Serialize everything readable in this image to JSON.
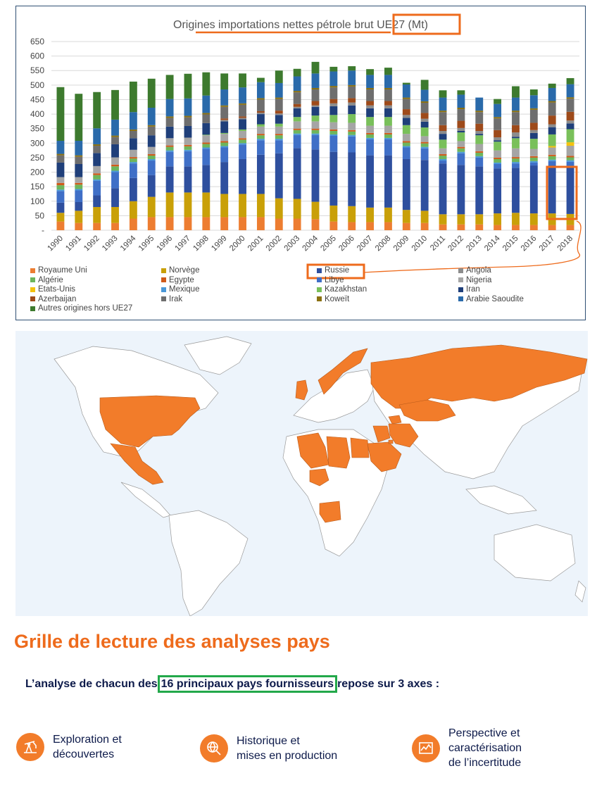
{
  "chart_data": {
    "type": "bar",
    "stacked": true,
    "title": "Origines importations nettes pétrole brut UE27 (Mt)",
    "categories": [
      "1990",
      "1991",
      "1992",
      "1993",
      "1994",
      "1995",
      "1996",
      "1997",
      "1998",
      "1999",
      "2000",
      "2001",
      "2002",
      "2003",
      "2004",
      "2005",
      "2006",
      "2007",
      "2008",
      "2009",
      "2010",
      "2011",
      "2012",
      "2013",
      "2014",
      "2015",
      "2016",
      "2017",
      "2018"
    ],
    "y_ticks": [
      "650",
      "600",
      "550",
      "500",
      "450",
      "400",
      "350",
      "300",
      "250",
      "200",
      "150",
      "100",
      "50",
      "-"
    ],
    "ylim": [
      0,
      650
    ],
    "legend_position": "bottom",
    "grid": true,
    "series": [
      {
        "name": "Royaume Uni",
        "color": "#ed7d31",
        "values": [
          30,
          25,
          25,
          25,
          40,
          45,
          45,
          45,
          45,
          45,
          45,
          45,
          40,
          40,
          38,
          30,
          28,
          28,
          28,
          25,
          25,
          20,
          20,
          20,
          18,
          18,
          18,
          18,
          18
        ]
      },
      {
        "name": "Norvège",
        "color": "#c9a008",
        "values": [
          30,
          42,
          55,
          55,
          60,
          70,
          85,
          85,
          85,
          80,
          80,
          80,
          70,
          68,
          60,
          55,
          55,
          50,
          50,
          45,
          42,
          35,
          35,
          35,
          40,
          42,
          40,
          40,
          38
        ]
      },
      {
        "name": "Russie",
        "color": "#2e4f9e",
        "values": [
          35,
          30,
          40,
          65,
          80,
          75,
          90,
          90,
          95,
          110,
          120,
          135,
          155,
          175,
          180,
          185,
          185,
          180,
          180,
          175,
          175,
          175,
          170,
          165,
          155,
          155,
          165,
          165,
          165
        ]
      },
      {
        "name": "Libye",
        "color": "#3f6fc7",
        "values": [
          40,
          40,
          50,
          55,
          50,
          50,
          50,
          52,
          55,
          50,
          50,
          50,
          45,
          45,
          50,
          55,
          55,
          55,
          55,
          40,
          40,
          10,
          40,
          30,
          15,
          15,
          10,
          15,
          15
        ]
      },
      {
        "name": "Mexique",
        "color": "#4a98d8",
        "values": [
          5,
          5,
          5,
          5,
          5,
          5,
          5,
          5,
          5,
          5,
          5,
          5,
          5,
          5,
          5,
          5,
          5,
          5,
          5,
          5,
          5,
          5,
          5,
          5,
          5,
          5,
          5,
          5,
          5
        ]
      },
      {
        "name": "Algérie",
        "color": "#6db55c",
        "values": [
          15,
          15,
          15,
          15,
          12,
          12,
          12,
          12,
          12,
          12,
          12,
          12,
          12,
          12,
          12,
          12,
          12,
          12,
          12,
          12,
          12,
          12,
          12,
          12,
          12,
          12,
          12,
          12,
          10
        ]
      },
      {
        "name": "Egypte",
        "color": "#d05a1a",
        "values": [
          8,
          6,
          6,
          6,
          5,
          5,
          5,
          5,
          5,
          5,
          5,
          5,
          5,
          5,
          5,
          5,
          5,
          5,
          5,
          5,
          5,
          5,
          5,
          5,
          5,
          5,
          5,
          5,
          5
        ]
      },
      {
        "name": "Nigeria",
        "color": "#a5a5a5",
        "values": [
          20,
          20,
          25,
          25,
          25,
          25,
          25,
          25,
          25,
          25,
          25,
          25,
          25,
          25,
          25,
          25,
          25,
          25,
          25,
          25,
          20,
          20,
          20,
          25,
          25,
          30,
          25,
          25,
          35
        ]
      },
      {
        "name": "Etats-Unis",
        "color": "#f4c20d",
        "values": [
          0,
          0,
          0,
          0,
          0,
          0,
          0,
          0,
          0,
          0,
          0,
          0,
          0,
          0,
          0,
          0,
          0,
          0,
          0,
          0,
          0,
          0,
          0,
          0,
          0,
          0,
          0,
          5,
          12
        ]
      },
      {
        "name": "Kazakhstan",
        "color": "#79c05a",
        "values": [
          0,
          0,
          0,
          0,
          0,
          0,
          0,
          0,
          2,
          3,
          5,
          8,
          10,
          15,
          20,
          25,
          30,
          30,
          30,
          30,
          30,
          30,
          30,
          30,
          30,
          35,
          35,
          40,
          45
        ]
      },
      {
        "name": "Iran",
        "color": "#1f3f7a",
        "values": [
          50,
          45,
          45,
          45,
          40,
          40,
          40,
          40,
          40,
          40,
          35,
          35,
          30,
          30,
          30,
          30,
          30,
          30,
          30,
          25,
          20,
          20,
          5,
          5,
          5,
          5,
          20,
          25,
          20
        ]
      },
      {
        "name": "Angola",
        "color": "#8c8c8c",
        "values": [
          0,
          0,
          0,
          0,
          0,
          0,
          0,
          0,
          0,
          5,
          5,
          5,
          5,
          5,
          5,
          10,
          10,
          10,
          10,
          10,
          10,
          10,
          10,
          10,
          10,
          15,
          10,
          10,
          10
        ]
      },
      {
        "name": "Azerbaijan",
        "color": "#9e4a1a",
        "values": [
          0,
          0,
          0,
          0,
          0,
          0,
          0,
          0,
          0,
          5,
          5,
          5,
          10,
          10,
          15,
          15,
          15,
          15,
          15,
          20,
          20,
          20,
          25,
          25,
          25,
          25,
          25,
          30,
          30
        ]
      },
      {
        "name": "Irak",
        "color": "#6e6e6e",
        "values": [
          25,
          25,
          25,
          25,
          25,
          30,
          30,
          30,
          30,
          40,
          40,
          40,
          40,
          40,
          40,
          40,
          40,
          40,
          40,
          35,
          35,
          45,
          40,
          40,
          40,
          45,
          45,
          45,
          45
        ]
      },
      {
        "name": "Koweït",
        "color": "#8b7110",
        "values": [
          5,
          5,
          5,
          5,
          5,
          5,
          5,
          5,
          5,
          5,
          5,
          5,
          5,
          5,
          5,
          5,
          5,
          5,
          5,
          5,
          5,
          5,
          5,
          5,
          5,
          5,
          5,
          5,
          5
        ]
      },
      {
        "name": "Arabie Saoudite",
        "color": "#2a6aaa",
        "values": [
          45,
          50,
          55,
          55,
          60,
          60,
          60,
          60,
          60,
          55,
          55,
          55,
          50,
          50,
          50,
          50,
          50,
          45,
          45,
          45,
          40,
          45,
          45,
          45,
          45,
          45,
          45,
          45,
          45
        ]
      },
      {
        "name": "Autres origines hors UE27",
        "color": "#3d7a2e",
        "values": [
          185,
          162,
          125,
          102,
          105,
          100,
          83,
          85,
          80,
          55,
          48,
          15,
          43,
          26,
          40,
          16,
          15,
          20,
          25,
          6,
          34,
          25,
          15,
          0,
          17,
          39,
          20,
          15,
          21
        ]
      }
    ]
  },
  "map": {
    "highlight_color": "#f27c2a",
    "land_color": "#ffffff",
    "sea_color": "#edf4fb"
  },
  "grid_section": {
    "title": "Grille de lecture des analyses pays",
    "intro_before": "L’analyse de chacun des",
    "intro_highlight": "16 principaux pays fournisseurs",
    "intro_after": "repose sur 3 axes :",
    "axes": [
      {
        "label": "Exploration et\ndécouvertes",
        "icon": "oil-pump-icon"
      },
      {
        "label": "Historique et\nmises en production",
        "icon": "globe-search-icon"
      },
      {
        "label": "Perspective et\ncaractérisation\nde l’incertitude",
        "icon": "chart-line-icon"
      }
    ]
  }
}
